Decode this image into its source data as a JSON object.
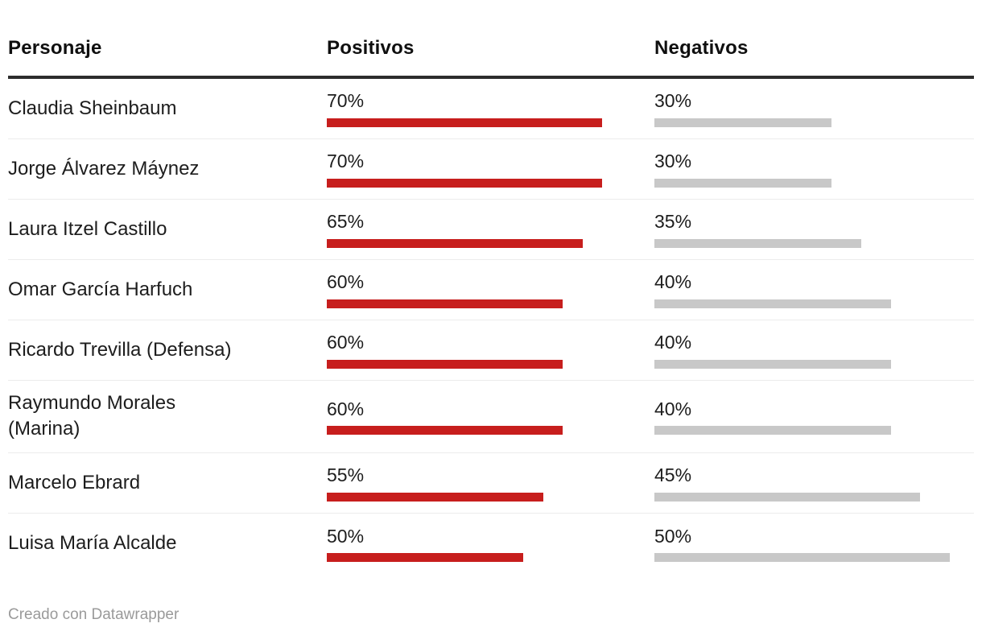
{
  "table": {
    "columns": [
      {
        "label": "Personaje"
      },
      {
        "label": "Positivos"
      },
      {
        "label": "Negativos"
      }
    ],
    "rows": [
      {
        "name": "Claudia Sheinbaum",
        "positivos": 70,
        "positivos_label": "70%",
        "negativos": 30,
        "negativos_label": "30%"
      },
      {
        "name": "Jorge Álvarez Máynez",
        "positivos": 70,
        "positivos_label": "70%",
        "negativos": 30,
        "negativos_label": "30%"
      },
      {
        "name": "Laura Itzel Castillo",
        "positivos": 65,
        "positivos_label": "65%",
        "negativos": 35,
        "negativos_label": "35%"
      },
      {
        "name": "Omar García Harfuch",
        "positivos": 60,
        "positivos_label": "60%",
        "negativos": 40,
        "negativos_label": "40%"
      },
      {
        "name": "Ricardo Trevilla (Defensa)",
        "positivos": 60,
        "positivos_label": "60%",
        "negativos": 40,
        "negativos_label": "40%"
      },
      {
        "name": "Raymundo Morales\n(Marina)",
        "positivos": 60,
        "positivos_label": "60%",
        "negativos": 40,
        "negativos_label": "40%"
      },
      {
        "name": "Marcelo Ebrard",
        "positivos": 55,
        "positivos_label": "55%",
        "negativos": 45,
        "negativos_label": "45%"
      },
      {
        "name": "Luisa María Alcalde",
        "positivos": 50,
        "positivos_label": "50%",
        "negativos": 50,
        "negativos_label": "50%"
      }
    ]
  },
  "footer": {
    "credit": "Creado con Datawrapper"
  },
  "colors": {
    "positive_bar": "#c71e1d",
    "negative_bar": "#c8c8c8",
    "header_rule": "#2d2d2d",
    "row_separator": "#ececec",
    "text": "#1d1d1d",
    "credit_text": "#9a9a9a"
  },
  "chart_data": {
    "type": "table",
    "title": "",
    "columns": [
      "Personaje",
      "Positivos",
      "Negativos"
    ],
    "categories": [
      "Claudia Sheinbaum",
      "Jorge Álvarez Máynez",
      "Laura Itzel Castillo",
      "Omar García Harfuch",
      "Ricardo Trevilla (Defensa)",
      "Raymundo Morales (Marina)",
      "Marcelo Ebrard",
      "Luisa María Alcalde"
    ],
    "series": [
      {
        "name": "Positivos",
        "color": "#c71e1d",
        "values": [
          70,
          70,
          65,
          60,
          60,
          60,
          55,
          50
        ]
      },
      {
        "name": "Negativos",
        "color": "#c8c8c8",
        "values": [
          30,
          30,
          35,
          40,
          40,
          40,
          45,
          50
        ]
      }
    ],
    "value_format": "percent",
    "positivos_bar_axis_max": 70,
    "negativos_bar_axis_max": 50,
    "grid": false,
    "legend_position": "none",
    "attribution": "Creado con Datawrapper"
  }
}
